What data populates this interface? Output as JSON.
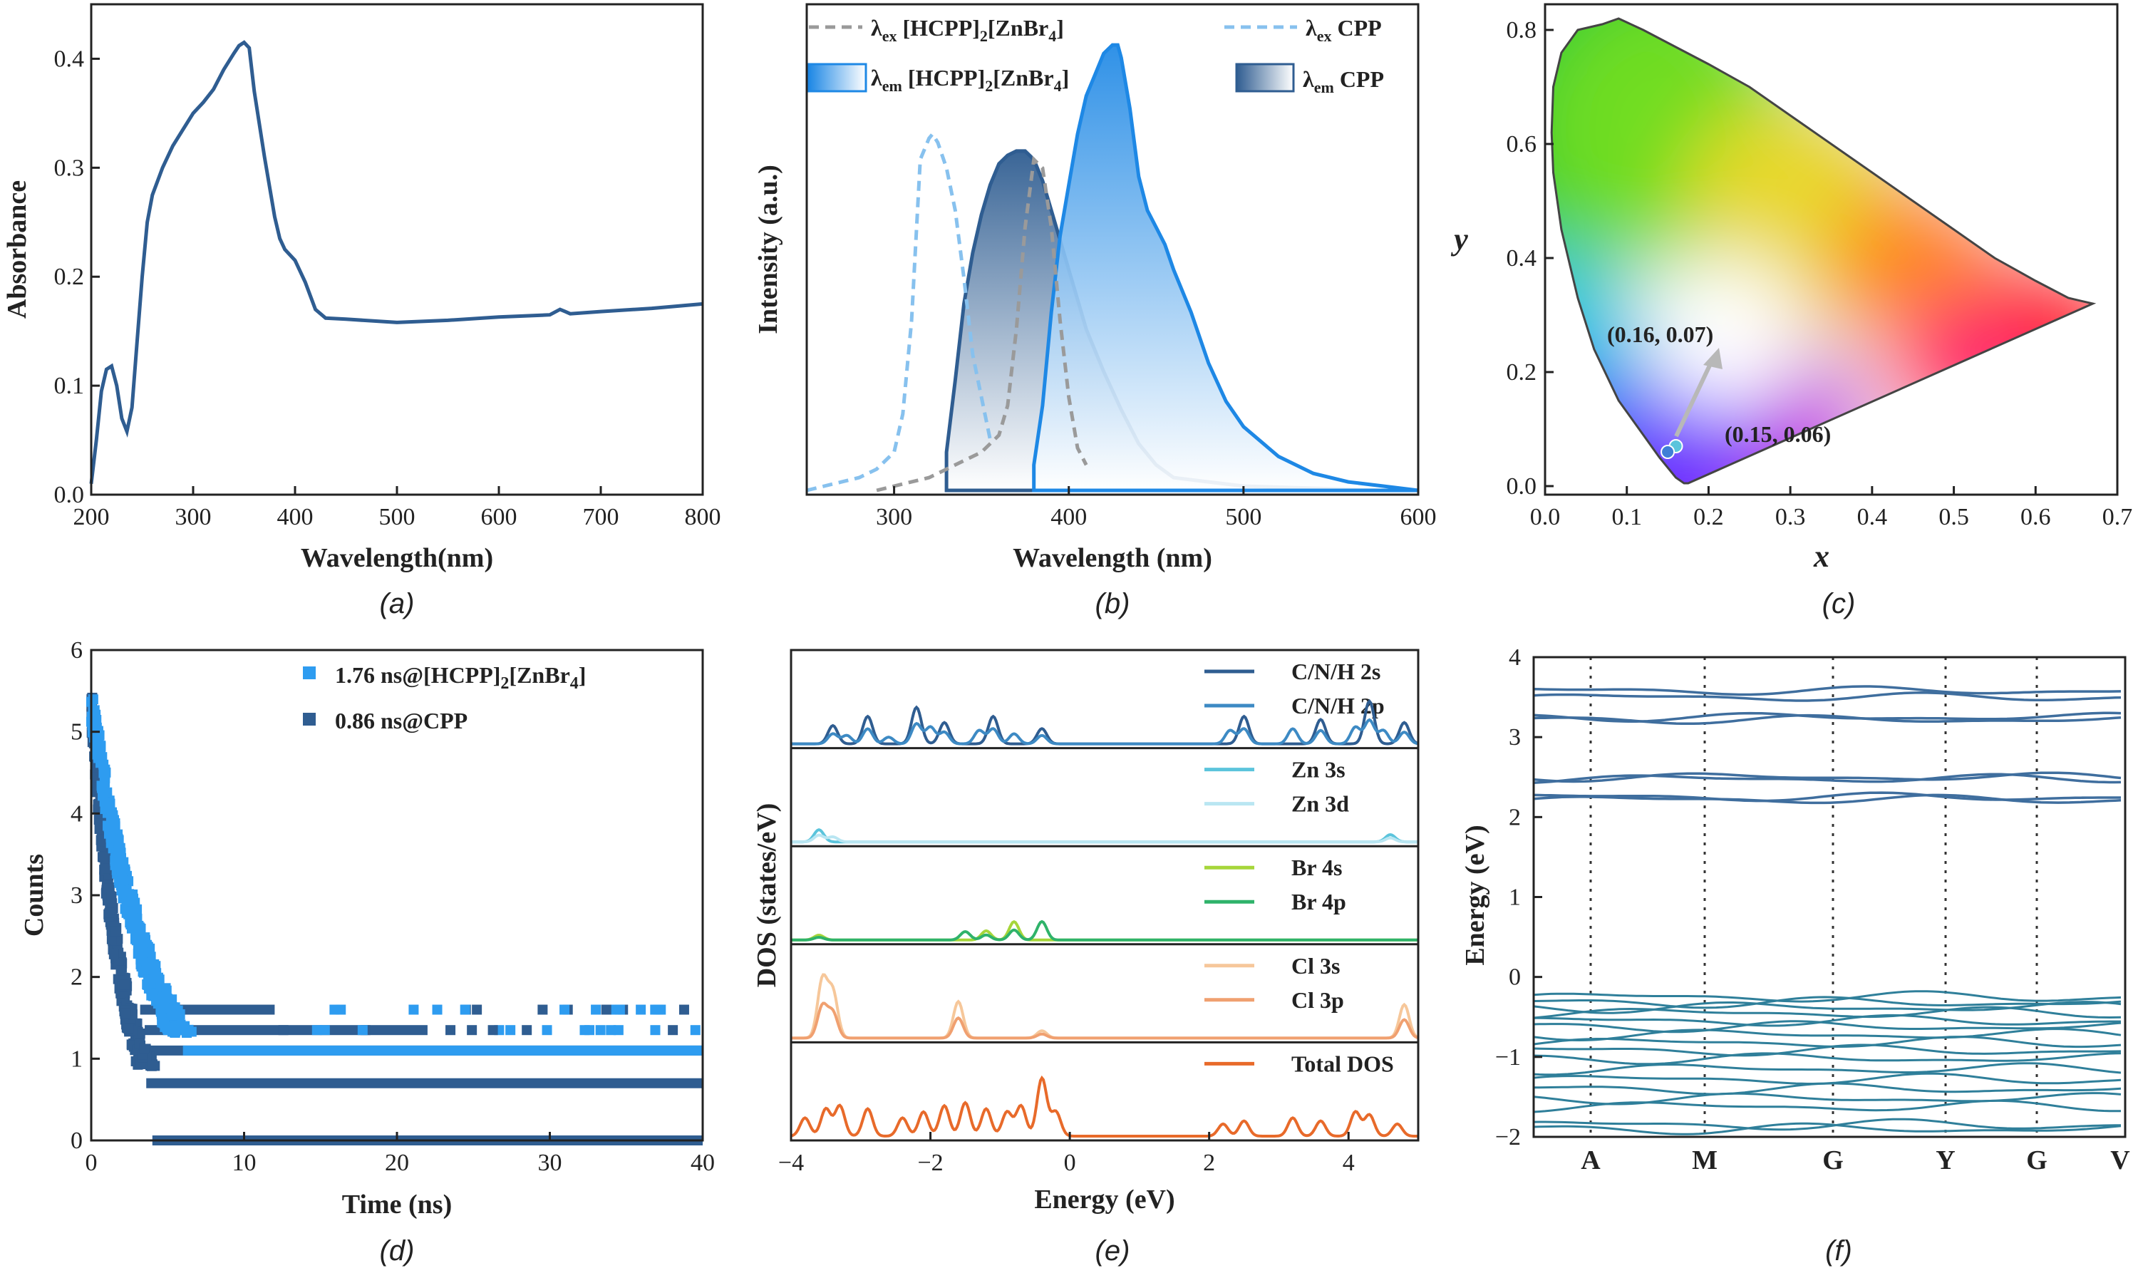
{
  "colors": {
    "dark_blue": "#2f5d91",
    "mid_blue": "#3d7ab0",
    "bright_blue": "#1e88e5",
    "light_blue": "#87c1ee",
    "gray": "#9a9a9a",
    "orange": "#e86a2a",
    "light_orange": "#f0a070",
    "peach": "#f6c79a",
    "green": "#2fb36a",
    "lime": "#a6d63a",
    "cyan": "#5bc4dc",
    "pale_cyan": "#b9e6f2",
    "teal": "#2f7f9a"
  },
  "chart_data": [
    {
      "panel": "a",
      "type": "line",
      "caption": "(a)",
      "xlabel": "Wavelength(nm)",
      "ylabel": "Absorbance",
      "xlim": [
        200,
        800
      ],
      "ylim": [
        0,
        0.45
      ],
      "xticks": [
        200,
        300,
        400,
        500,
        600,
        700,
        800
      ],
      "yticks": [
        0.0,
        0.1,
        0.2,
        0.3,
        0.4
      ],
      "ytick_labels": [
        "0.0",
        "0.1",
        "0.2",
        "0.3",
        "0.4"
      ],
      "series": [
        {
          "name": "Absorbance",
          "x": [
            200,
            205,
            210,
            215,
            220,
            225,
            230,
            235,
            240,
            245,
            250,
            255,
            260,
            270,
            280,
            290,
            300,
            310,
            320,
            330,
            340,
            345,
            350,
            355,
            360,
            370,
            380,
            385,
            390,
            400,
            410,
            420,
            430,
            450,
            500,
            550,
            600,
            650,
            660,
            665,
            670,
            700,
            750,
            800
          ],
          "y": [
            0.01,
            0.05,
            0.095,
            0.115,
            0.118,
            0.1,
            0.07,
            0.058,
            0.08,
            0.14,
            0.2,
            0.25,
            0.275,
            0.3,
            0.32,
            0.335,
            0.35,
            0.36,
            0.372,
            0.39,
            0.405,
            0.412,
            0.415,
            0.41,
            0.37,
            0.31,
            0.255,
            0.235,
            0.225,
            0.215,
            0.195,
            0.17,
            0.162,
            0.161,
            0.158,
            0.16,
            0.163,
            0.165,
            0.17,
            0.168,
            0.166,
            0.168,
            0.171,
            0.175
          ]
        }
      ]
    },
    {
      "panel": "b",
      "type": "line",
      "caption": "(b)",
      "xlabel": "Wavelength (nm)",
      "ylabel": "Intensity (a.u.)",
      "xlim": [
        250,
        600
      ],
      "ylim": [
        0,
        1.05
      ],
      "xticks": [
        300,
        400,
        500,
        600
      ],
      "yticks": [],
      "legend": [
        {
          "symbol": "λ",
          "sub": "ex",
          "text": " [HCPP]",
          "sub2": "2",
          "text2": "[ZnBr",
          "sub3": "4",
          "text3": "]",
          "style": "gray-dashed"
        },
        {
          "symbol": "λ",
          "sub": "ex",
          "text": " CPP",
          "sub2": "",
          "text2": "",
          "sub3": "",
          "text3": "",
          "style": "light-blue-dashed"
        },
        {
          "symbol": "λ",
          "sub": "em",
          "text": " [HCPP]",
          "sub2": "2",
          "text2": "[ZnBr",
          "sub3": "4",
          "text3": "]",
          "style": "bright-blue-fill"
        },
        {
          "symbol": "λ",
          "sub": "em",
          "text": " CPP",
          "sub2": "",
          "text2": "",
          "sub3": "",
          "text3": "",
          "style": "dark-blue-fill"
        }
      ],
      "series": [
        {
          "name": "λex [HCPP]2[ZnBr4]",
          "x": [
            290,
            300,
            320,
            330,
            340,
            350,
            360,
            365,
            370,
            375,
            380,
            385,
            390,
            395,
            400,
            405,
            410
          ],
          "y": [
            0.0,
            0.01,
            0.03,
            0.05,
            0.07,
            0.09,
            0.13,
            0.2,
            0.38,
            0.62,
            0.78,
            0.76,
            0.62,
            0.4,
            0.22,
            0.1,
            0.06
          ]
        },
        {
          "name": "λex CPP",
          "x": [
            250,
            260,
            270,
            280,
            290,
            300,
            305,
            310,
            315,
            320,
            322,
            325,
            330,
            335,
            340,
            345,
            350,
            355
          ],
          "y": [
            0.0,
            0.01,
            0.02,
            0.03,
            0.05,
            0.09,
            0.18,
            0.4,
            0.78,
            0.83,
            0.84,
            0.82,
            0.76,
            0.66,
            0.5,
            0.32,
            0.22,
            0.12
          ]
        },
        {
          "name": "λem [HCPP]2[ZnBr4]",
          "x": [
            380,
            385,
            390,
            395,
            400,
            405,
            410,
            415,
            420,
            425,
            428,
            430,
            435,
            440,
            445,
            450,
            455,
            460,
            470,
            480,
            490,
            500,
            520,
            540,
            560,
            580,
            600
          ],
          "y": [
            0.06,
            0.2,
            0.42,
            0.6,
            0.72,
            0.84,
            0.93,
            0.98,
            1.03,
            1.05,
            1.05,
            1.02,
            0.9,
            0.74,
            0.66,
            0.62,
            0.58,
            0.52,
            0.42,
            0.3,
            0.21,
            0.15,
            0.08,
            0.04,
            0.02,
            0.01,
            0.0
          ]
        },
        {
          "name": "λem CPP",
          "x": [
            330,
            335,
            340,
            345,
            350,
            355,
            360,
            365,
            370,
            375,
            380,
            385,
            390,
            395,
            400,
            405,
            410,
            420,
            430,
            440,
            450,
            460,
            480,
            500,
            540,
            580,
            600
          ],
          "y": [
            0.09,
            0.26,
            0.44,
            0.56,
            0.65,
            0.72,
            0.77,
            0.79,
            0.8,
            0.8,
            0.78,
            0.73,
            0.66,
            0.59,
            0.52,
            0.45,
            0.38,
            0.28,
            0.19,
            0.11,
            0.06,
            0.03,
            0.02,
            0.01,
            0.005,
            0.0,
            0.0
          ]
        }
      ]
    },
    {
      "panel": "c",
      "type": "scatter",
      "caption": "(c)",
      "xlabel": "x",
      "ylabel": "y",
      "xlim": [
        0.0,
        0.7
      ],
      "ylim": [
        0.0,
        0.8
      ],
      "xticks": [
        0.0,
        0.1,
        0.2,
        0.3,
        0.4,
        0.5,
        0.6,
        0.7
      ],
      "yticks": [
        0.0,
        0.2,
        0.4,
        0.6,
        0.8
      ],
      "xtick_labels": [
        "0.0",
        "0.1",
        "0.2",
        "0.3",
        "0.4",
        "0.5",
        "0.6",
        "0.7"
      ],
      "ytick_labels": [
        "0.0",
        "0.2",
        "0.4",
        "0.6",
        "0.8"
      ],
      "points": [
        {
          "x": 0.16,
          "y": 0.07,
          "label": "(0.16, 0.07)",
          "color": "#5bc4dc"
        },
        {
          "x": 0.15,
          "y": 0.06,
          "label": "(0.15, 0.06)",
          "color": "#3f7fd6"
        }
      ],
      "locus": {
        "x": [
          0.175,
          0.17,
          0.16,
          0.14,
          0.12,
          0.09,
          0.06,
          0.04,
          0.02,
          0.01,
          0.008,
          0.01,
          0.02,
          0.04,
          0.07,
          0.09,
          0.12,
          0.16,
          0.2,
          0.25,
          0.3,
          0.35,
          0.4,
          0.45,
          0.5,
          0.55,
          0.6,
          0.64,
          0.67,
          0.175
        ],
        "y": [
          0.005,
          0.005,
          0.015,
          0.05,
          0.09,
          0.15,
          0.24,
          0.33,
          0.45,
          0.55,
          0.62,
          0.7,
          0.76,
          0.8,
          0.81,
          0.82,
          0.8,
          0.77,
          0.74,
          0.7,
          0.65,
          0.6,
          0.55,
          0.5,
          0.45,
          0.4,
          0.36,
          0.33,
          0.32,
          0.005
        ]
      }
    },
    {
      "panel": "d",
      "type": "scatter",
      "caption": "(d)",
      "xlabel": "Time (ns)",
      "ylabel": "Counts",
      "xlim": [
        0,
        40
      ],
      "ylim": [
        0,
        6
      ],
      "xticks": [
        0,
        10,
        20,
        30,
        40
      ],
      "yticks": [
        0,
        1,
        2,
        3,
        4,
        5,
        6
      ],
      "legend": [
        {
          "label_a": "1.76 ns@[HCPP]",
          "sub": "2",
          "label_b": "[ZnBr",
          "sub2": "4",
          "label_c": "]",
          "color": "#2e9cf0"
        },
        {
          "label_a": "0.86 ns@CPP",
          "sub": "",
          "label_b": "",
          "sub2": "",
          "label_c": "",
          "color": "#2f5d91"
        }
      ],
      "series": [
        {
          "name": "1.76 ns@[HCPP]2[ZnBr4]",
          "tau": 1.76,
          "start": 5.35,
          "floor": 1.1
        },
        {
          "name": "0.86 ns@CPP",
          "tau": 0.86,
          "start": 5.35,
          "floor": 0.7
        }
      ]
    },
    {
      "panel": "e",
      "type": "line",
      "caption": "(e)",
      "xlabel": "Energy (eV)",
      "ylabel": "DOS (states/eV)",
      "xlim": [
        -4,
        5
      ],
      "xticks": [
        -4,
        -2,
        0,
        2,
        4
      ],
      "xtick_labels": [
        "−4",
        "−2",
        "0",
        "2",
        "4"
      ],
      "subpanels": [
        {
          "name": "C/N/H",
          "legend": [
            {
              "label": "C/N/H 2s",
              "color": "#2f5d91"
            },
            {
              "label": "C/N/H 2p",
              "color": "#3d8ac4"
            }
          ],
          "peaks": [
            [
              -3.4,
              0.3
            ],
            [
              -3.2,
              0.25
            ],
            [
              -2.9,
              0.45
            ],
            [
              -2.6,
              0.2
            ],
            [
              -2.2,
              0.6
            ],
            [
              -2.0,
              0.5
            ],
            [
              -1.8,
              0.35
            ],
            [
              -1.3,
              0.4
            ],
            [
              -1.1,
              0.45
            ],
            [
              -0.8,
              0.3
            ],
            [
              -0.4,
              0.25
            ],
            [
              2.3,
              0.4
            ],
            [
              2.5,
              0.45
            ],
            [
              3.2,
              0.45
            ],
            [
              3.6,
              0.4
            ],
            [
              4.1,
              0.5
            ],
            [
              4.3,
              0.7
            ],
            [
              4.5,
              0.4
            ],
            [
              4.8,
              0.35
            ]
          ]
        },
        {
          "name": "Zn",
          "legend": [
            {
              "label": "Zn 3s",
              "color": "#5bc4dc"
            },
            {
              "label": "Zn 3d",
              "color": "#b9e6f2"
            }
          ],
          "peaks": [
            [
              -3.6,
              0.2
            ],
            [
              -3.4,
              0.15
            ],
            [
              4.6,
              0.12
            ]
          ]
        },
        {
          "name": "Br",
          "legend": [
            {
              "label": "Br 4s",
              "color": "#a6d63a"
            },
            {
              "label": "Br 4p",
              "color": "#2fb36a"
            }
          ],
          "peaks": [
            [
              -3.6,
              0.08
            ],
            [
              -1.5,
              0.25
            ],
            [
              -0.8,
              0.3
            ],
            [
              -0.4,
              0.55
            ],
            [
              -1.2,
              0.15
            ]
          ]
        },
        {
          "name": "Cl",
          "legend": [
            {
              "label": "Cl 3s",
              "color": "#f6c79a"
            },
            {
              "label": "Cl 3p",
              "color": "#f0a070"
            }
          ],
          "peaks": [
            [
              -3.55,
              0.95
            ],
            [
              -3.4,
              0.75
            ],
            [
              -1.6,
              0.6
            ],
            [
              -0.4,
              0.12
            ],
            [
              4.8,
              0.55
            ]
          ]
        },
        {
          "name": "Total",
          "legend": [
            {
              "label": "Total DOS",
              "color": "#e86a2a"
            }
          ],
          "peaks": [
            [
              -3.8,
              0.3
            ],
            [
              -3.5,
              0.45
            ],
            [
              -3.3,
              0.5
            ],
            [
              -2.9,
              0.45
            ],
            [
              -2.4,
              0.3
            ],
            [
              -2.1,
              0.4
            ],
            [
              -1.8,
              0.5
            ],
            [
              -1.5,
              0.55
            ],
            [
              -1.2,
              0.45
            ],
            [
              -0.9,
              0.4
            ],
            [
              -0.7,
              0.5
            ],
            [
              -0.4,
              0.95
            ],
            [
              -0.2,
              0.4
            ],
            [
              2.2,
              0.2
            ],
            [
              2.5,
              0.25
            ],
            [
              3.2,
              0.3
            ],
            [
              3.6,
              0.25
            ],
            [
              4.1,
              0.4
            ],
            [
              4.3,
              0.35
            ],
            [
              4.7,
              0.2
            ]
          ]
        }
      ]
    },
    {
      "panel": "f",
      "type": "line",
      "caption": "(f)",
      "xlabel": "",
      "ylabel": "Energy (eV)",
      "ylim": [
        -2,
        4
      ],
      "yticks": [
        -2,
        -1,
        0,
        1,
        2,
        3,
        4
      ],
      "ytick_labels": [
        "−2",
        "−1",
        "0",
        "1",
        "2",
        "3",
        "4"
      ],
      "kpoints": [
        "A",
        "M",
        "G",
        "Y",
        "G",
        "V"
      ],
      "conduction_bands": [
        3.5,
        3.58,
        3.22,
        3.25,
        2.5,
        2.48,
        2.22,
        2.25
      ],
      "valence_bands": [
        -0.25,
        -0.32,
        -0.38,
        -0.45,
        -0.55,
        -0.62,
        -0.72,
        -0.82,
        -0.92,
        -1.02,
        -1.15,
        -1.28,
        -1.4,
        -1.52,
        -1.62,
        -1.85,
        -1.9
      ]
    }
  ]
}
